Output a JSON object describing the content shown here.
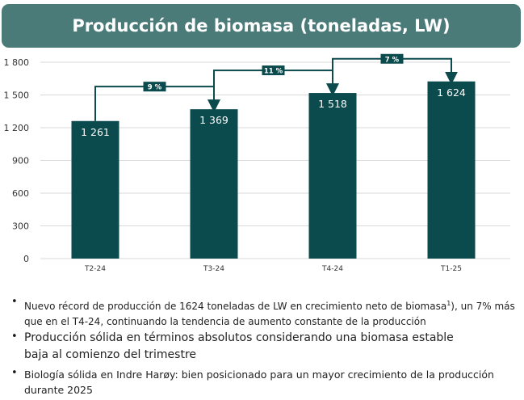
{
  "title": "Producción de biomasa (toneladas, LW)",
  "colors": {
    "banner": "#4b7b79",
    "bar": "#0b4a4d",
    "arrow": "#0b4a4d",
    "axis_text": "#333333"
  },
  "chart_data": {
    "type": "bar",
    "categories": [
      "T2-24",
      "T3-24",
      "T4-24",
      "T1-25"
    ],
    "values": [
      1261,
      1369,
      1518,
      1624
    ],
    "value_labels": [
      "1 261",
      "1 369",
      "1 518",
      "1 624"
    ],
    "ylim": [
      0,
      1800
    ],
    "yticks": [
      0,
      300,
      600,
      900,
      1200,
      1500,
      1800
    ],
    "ytick_labels": [
      "0",
      "300",
      "600",
      "900",
      "1 200",
      "1 500",
      "1 800"
    ],
    "grid": true,
    "growth_annotations": [
      {
        "from": "T2-24",
        "to": "T3-24",
        "label": "9 %"
      },
      {
        "from": "T3-24",
        "to": "T4-24",
        "label": "11 %"
      },
      {
        "from": "T4-24",
        "to": "T1-25",
        "label": "7 %"
      }
    ]
  },
  "bullets": [
    {
      "text_before": "Nuevo récord de producción de 1624 toneladas de LW en crecimiento neto de biomasa",
      "sup": "1",
      "text_after": "), un 7% más que en el T4-24, continuando la tendencia de aumento constante de la producción"
    },
    {
      "text": "Producción sólida en términos absolutos considerando una biomasa estable baja al comienzo del trimestre"
    },
    {
      "text": "Biología sólida en Indre Harøy: bien posicionado para un mayor crecimiento de la producción durante 2025"
    }
  ],
  "bullet_symbol": "•"
}
